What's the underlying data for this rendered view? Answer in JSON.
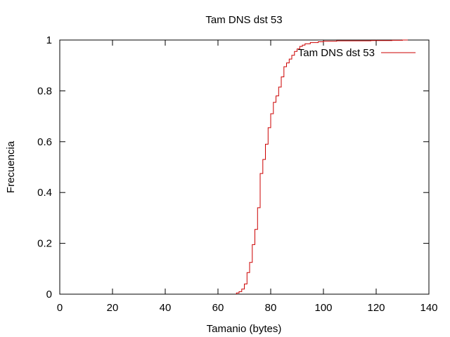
{
  "chart_data": {
    "type": "line",
    "step": true,
    "title": "Tam DNS dst 53",
    "xlabel": "Tamanio (bytes)",
    "ylabel": "Frecuencia",
    "xlim": [
      0,
      140
    ],
    "ylim": [
      0,
      1
    ],
    "xticks": [
      "0",
      "20",
      "40",
      "60",
      "80",
      "100",
      "120",
      "140"
    ],
    "yticks": [
      "0",
      "0.2",
      "0.4",
      "0.6",
      "0.8",
      "1"
    ],
    "grid": false,
    "legend_position": "top-right",
    "series": [
      {
        "name": "Tam DNS dst 53",
        "color": "#cc0000",
        "points": [
          [
            67,
            0.0
          ],
          [
            67,
            0.005
          ],
          [
            68,
            0.005
          ],
          [
            68,
            0.01
          ],
          [
            69,
            0.01
          ],
          [
            69,
            0.02
          ],
          [
            70,
            0.02
          ],
          [
            70,
            0.04
          ],
          [
            71,
            0.04
          ],
          [
            71,
            0.085
          ],
          [
            72,
            0.085
          ],
          [
            72,
            0.125
          ],
          [
            73,
            0.125
          ],
          [
            73,
            0.195
          ],
          [
            74,
            0.195
          ],
          [
            74,
            0.255
          ],
          [
            75,
            0.255
          ],
          [
            75,
            0.34
          ],
          [
            76,
            0.34
          ],
          [
            76,
            0.475
          ],
          [
            77,
            0.475
          ],
          [
            77,
            0.53
          ],
          [
            78,
            0.53
          ],
          [
            78,
            0.59
          ],
          [
            79,
            0.59
          ],
          [
            79,
            0.655
          ],
          [
            80,
            0.655
          ],
          [
            80,
            0.71
          ],
          [
            81,
            0.71
          ],
          [
            81,
            0.755
          ],
          [
            82,
            0.755
          ],
          [
            82,
            0.78
          ],
          [
            83,
            0.78
          ],
          [
            83,
            0.815
          ],
          [
            84,
            0.815
          ],
          [
            84,
            0.855
          ],
          [
            85,
            0.855
          ],
          [
            85,
            0.895
          ],
          [
            86,
            0.895
          ],
          [
            86,
            0.91
          ],
          [
            87,
            0.91
          ],
          [
            87,
            0.925
          ],
          [
            88,
            0.925
          ],
          [
            88,
            0.94
          ],
          [
            89,
            0.94
          ],
          [
            89,
            0.955
          ],
          [
            90,
            0.955
          ],
          [
            90,
            0.965
          ],
          [
            91,
            0.965
          ],
          [
            91,
            0.975
          ],
          [
            92,
            0.975
          ],
          [
            92,
            0.98
          ],
          [
            93,
            0.98
          ],
          [
            93,
            0.985
          ],
          [
            95,
            0.985
          ],
          [
            95,
            0.99
          ],
          [
            98,
            0.99
          ],
          [
            98,
            0.993
          ],
          [
            100,
            0.993
          ],
          [
            100,
            0.995
          ],
          [
            105,
            0.995
          ],
          [
            105,
            0.997
          ],
          [
            118,
            0.997
          ],
          [
            118,
            0.998
          ],
          [
            126,
            0.998
          ],
          [
            126,
            0.999
          ],
          [
            130,
            0.999
          ],
          [
            130,
            1.0
          ],
          [
            132,
            1.0
          ]
        ]
      }
    ]
  }
}
